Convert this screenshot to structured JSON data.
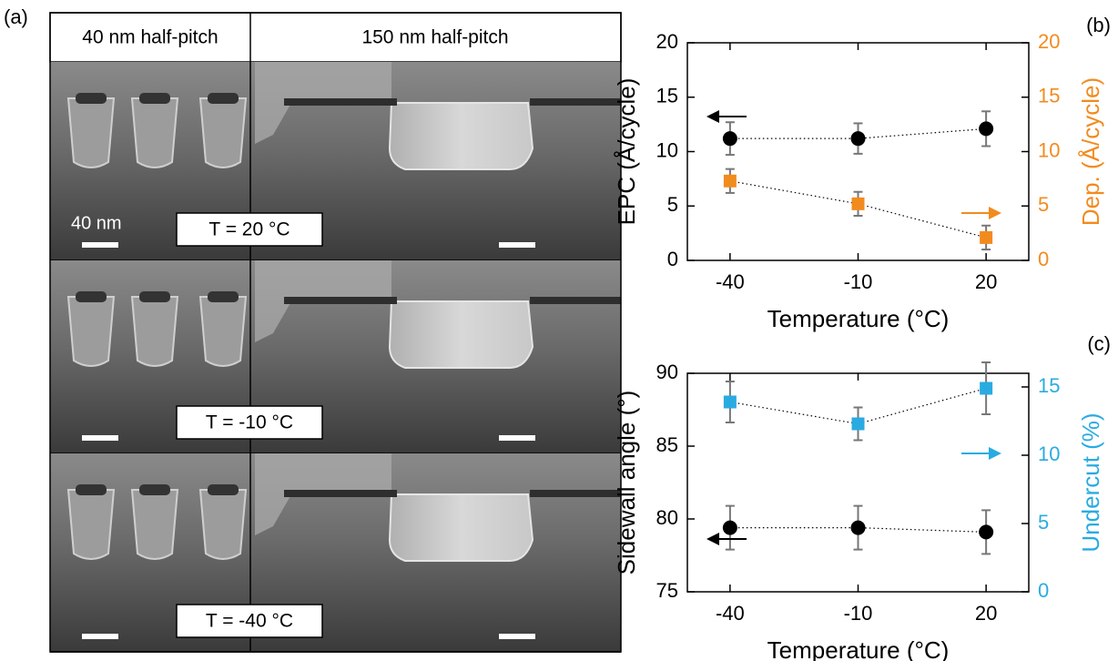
{
  "panel_a": {
    "label": "(a)",
    "headers": [
      "40 nm half-pitch",
      "150 nm half-pitch"
    ],
    "scale_label": "40 nm",
    "rows": [
      "T = 20 °C",
      "T = -10 °C",
      "T = -40 °C"
    ]
  },
  "chart_data": [
    {
      "type": "line",
      "label": "(b)",
      "x_label": "Temperature (°C)",
      "y_label": "EPC (Å/cycle)",
      "y2_label": "Dep. (Å/cycle)",
      "x": [
        -40,
        -10,
        20
      ],
      "xlim": [
        -50,
        30
      ],
      "xticks": [
        -40,
        -10,
        20
      ],
      "ylim": [
        0,
        20
      ],
      "yticks": [
        0,
        5,
        10,
        15,
        20
      ],
      "y2lim": [
        0,
        20
      ],
      "y2ticks": [
        0,
        5,
        10,
        15,
        20
      ],
      "y2_color": "#f28b1e",
      "series": [
        {
          "color": "#000000",
          "marker": "circle",
          "values": [
            11.2,
            11.2,
            12.1
          ],
          "errors": [
            1.5,
            1.4,
            1.6
          ]
        },
        {
          "axis": "y2",
          "color": "#f28b1e",
          "marker": "square",
          "values": [
            7.3,
            5.2,
            2.1
          ],
          "errors": [
            1.1,
            1.1,
            1.1
          ]
        }
      ]
    },
    {
      "type": "line",
      "label": "(c)",
      "x_label": "Temperature (°C)",
      "y_label": "Sidewall angle (°)",
      "y2_label": "Undercut (%)",
      "x": [
        -40,
        -10,
        20
      ],
      "xlim": [
        -50,
        30
      ],
      "xticks": [
        -40,
        -10,
        20
      ],
      "ylim": [
        75,
        90
      ],
      "yticks": [
        75,
        80,
        85,
        90
      ],
      "y2lim": [
        0,
        16
      ],
      "y2ticks": [
        0,
        5,
        10,
        15
      ],
      "y2_color": "#29abe2",
      "series": [
        {
          "color": "#000000",
          "marker": "circle",
          "values": [
            79.4,
            79.4,
            79.1
          ],
          "errors": [
            1.5,
            1.5,
            1.5
          ]
        },
        {
          "axis": "y2",
          "color": "#29abe2",
          "marker": "square",
          "values": [
            13.9,
            12.3,
            14.9
          ],
          "errors": [
            1.5,
            1.2,
            1.9
          ]
        }
      ]
    }
  ]
}
